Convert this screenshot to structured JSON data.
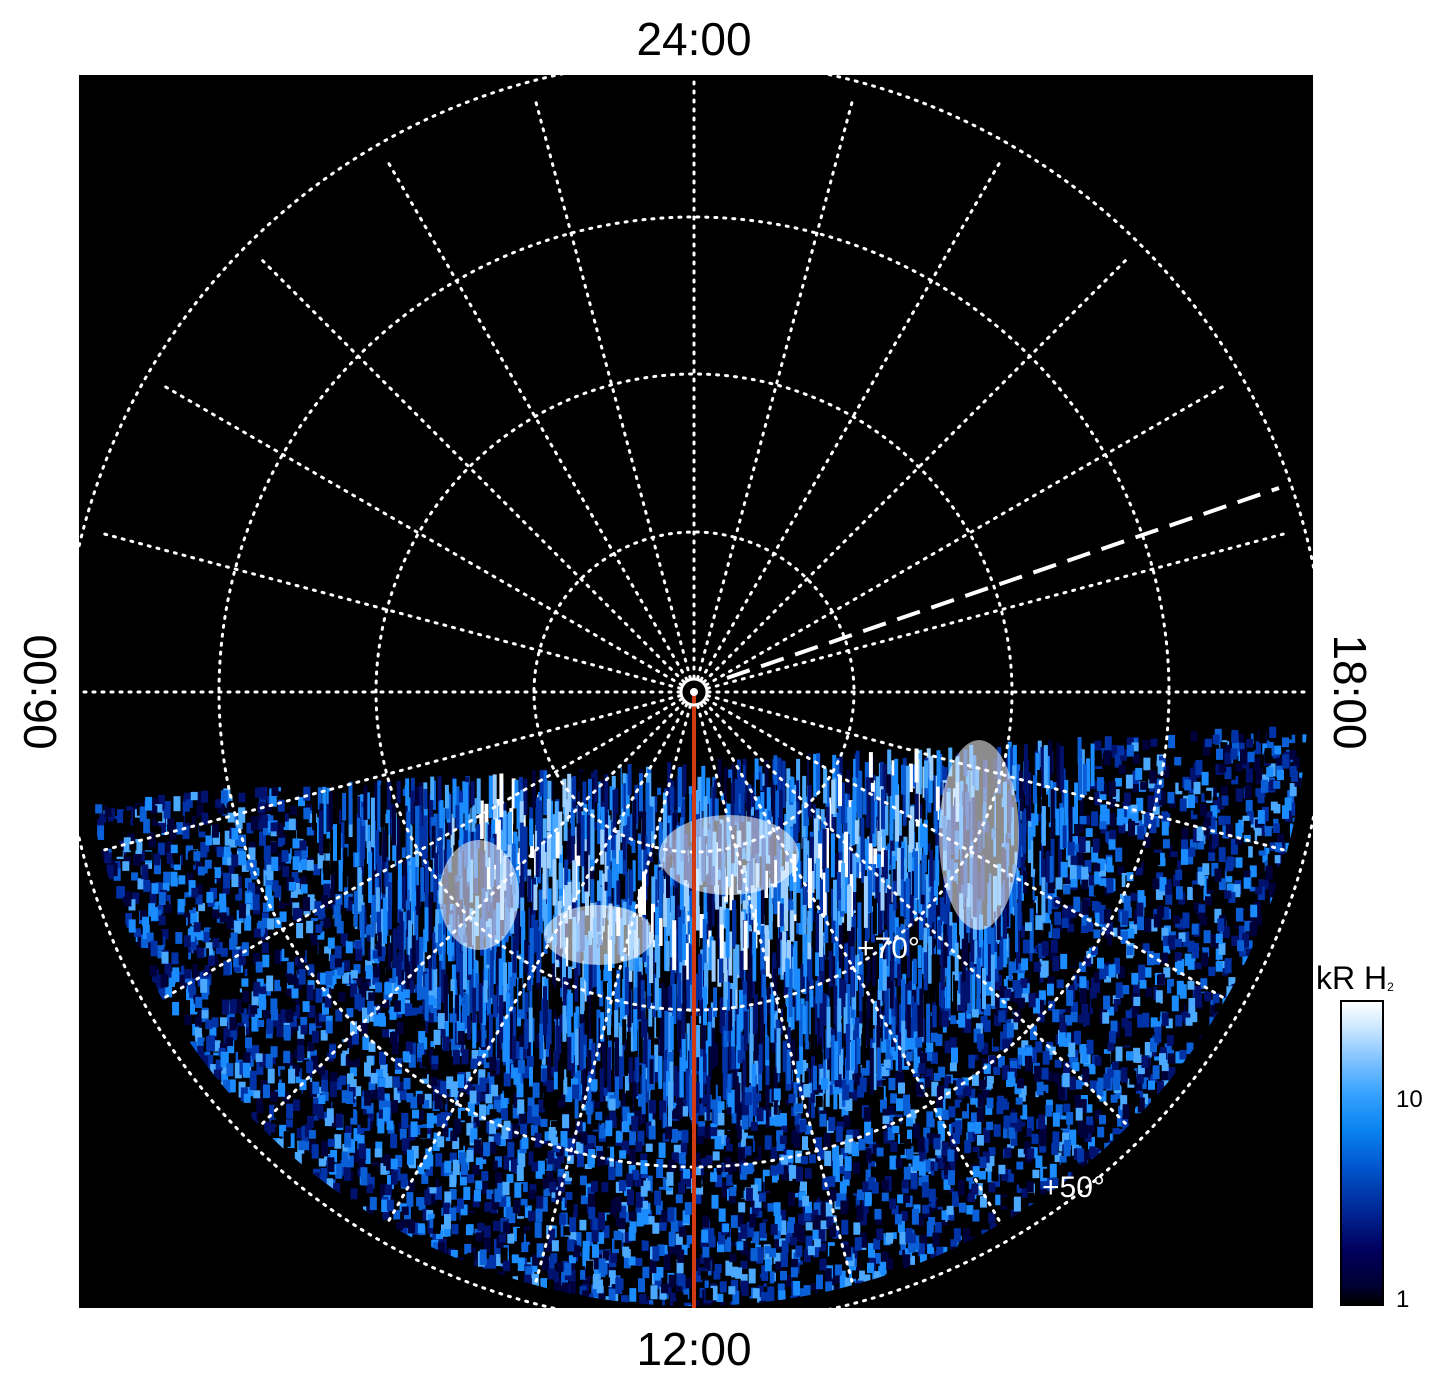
{
  "labels": {
    "top": "24:00",
    "bottom": "12:00",
    "left": "06:00",
    "right": "18:00"
  },
  "latitude_labels": {
    "lat70": "+70°",
    "lat50": "+50°"
  },
  "colorbar": {
    "title_main": "kR H",
    "title_sub": "2",
    "ticks": [
      "10",
      "1"
    ]
  },
  "colors": {
    "background": "#000000",
    "grid": "#ffffff",
    "meridian_line": "#d23a12",
    "aurora_bright": "#ffffff",
    "aurora_mid": "#1a8cff",
    "aurora_dark": "#00126e"
  }
}
